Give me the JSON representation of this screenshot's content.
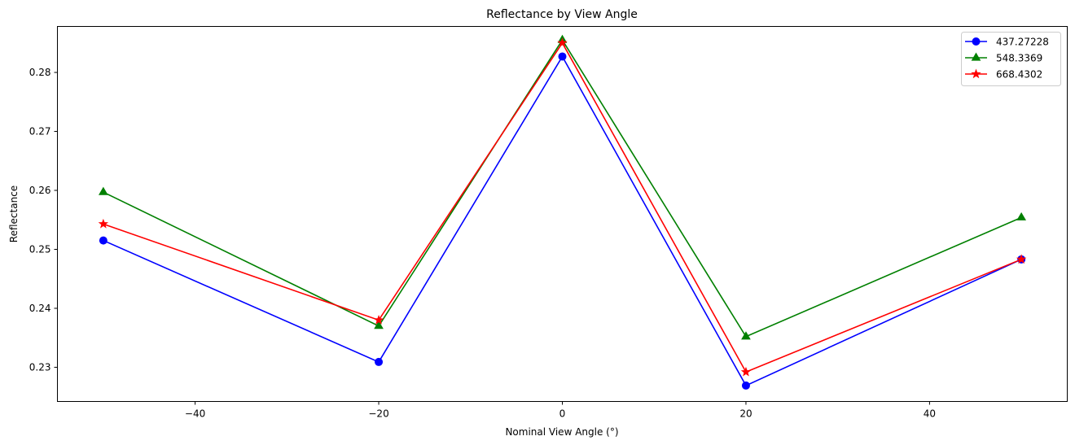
{
  "chart_data": {
    "type": "line",
    "title": "Reflectance by View Angle",
    "xlabel": "Nominal View Angle (°)",
    "ylabel": "Reflectance",
    "x": [
      -50,
      -20,
      0,
      20,
      50
    ],
    "xlim": [
      -55,
      55
    ],
    "ylim": [
      0.2242,
      0.2878
    ],
    "xticks": [
      -40,
      -20,
      0,
      20,
      40
    ],
    "xtick_labels": [
      "−40",
      "−20",
      "0",
      "20",
      "40"
    ],
    "yticks": [
      0.23,
      0.24,
      0.25,
      0.26,
      0.27,
      0.28
    ],
    "ytick_labels": [
      "0.23",
      "0.24",
      "0.25",
      "0.26",
      "0.27",
      "0.28"
    ],
    "grid": false,
    "legend_position": "upper right",
    "series": [
      {
        "name": "437.27228",
        "color": "#0000ff",
        "marker": "circle",
        "values": [
          0.2515,
          0.2309,
          0.2827,
          0.2269,
          0.2483
        ]
      },
      {
        "name": "548.3369",
        "color": "#008000",
        "marker": "triangle",
        "values": [
          0.2597,
          0.237,
          0.2855,
          0.2352,
          0.2554
        ]
      },
      {
        "name": "668.4302",
        "color": "#ff0000",
        "marker": "star",
        "values": [
          0.2543,
          0.238,
          0.285,
          0.2292,
          0.2483
        ]
      }
    ]
  }
}
